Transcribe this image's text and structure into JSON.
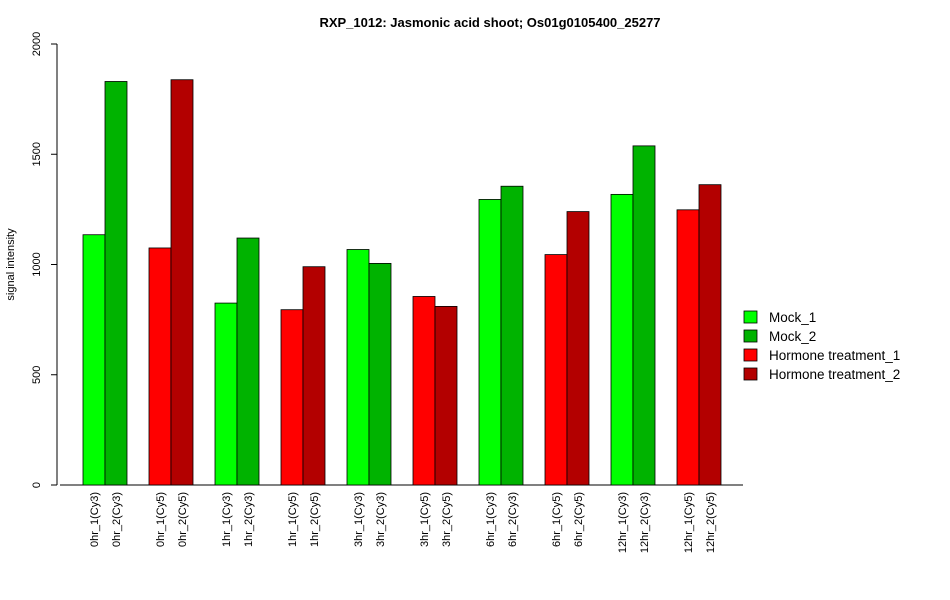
{
  "chart_data": {
    "type": "bar",
    "title": "RXP_1012: Jasmonic acid shoot; Os01g0105400_25277",
    "xlabel": "",
    "ylabel": "signal intensity",
    "ylim": [
      0,
      2000
    ],
    "yticks": [
      0,
      500,
      1000,
      1500,
      2000
    ],
    "grid": false,
    "legend_position": "right",
    "legend": [
      {
        "label": "Mock_1",
        "color": "#00ff00"
      },
      {
        "label": "Mock_2",
        "color": "#00b300"
      },
      {
        "label": "Hormone treatment_1",
        "color": "#ff0000"
      },
      {
        "label": "Hormone treatment_2",
        "color": "#b30000"
      }
    ],
    "groups": [
      {
        "bars": [
          {
            "label": "0hr_1(Cy3)",
            "value": 1135,
            "series": "Mock_1"
          },
          {
            "label": "0hr_2(Cy3)",
            "value": 1830,
            "series": "Mock_2"
          }
        ]
      },
      {
        "bars": [
          {
            "label": "0hr_1(Cy5)",
            "value": 1075,
            "series": "Hormone treatment_1"
          },
          {
            "label": "0hr_2(Cy5)",
            "value": 1838,
            "series": "Hormone treatment_2"
          }
        ]
      },
      {
        "bars": [
          {
            "label": "1hr_1(Cy3)",
            "value": 825,
            "series": "Mock_1"
          },
          {
            "label": "1hr_2(Cy3)",
            "value": 1120,
            "series": "Mock_2"
          }
        ]
      },
      {
        "bars": [
          {
            "label": "1hr_1(Cy5)",
            "value": 795,
            "series": "Hormone treatment_1"
          },
          {
            "label": "1hr_2(Cy5)",
            "value": 990,
            "series": "Hormone treatment_2"
          }
        ]
      },
      {
        "bars": [
          {
            "label": "3hr_1(Cy3)",
            "value": 1068,
            "series": "Mock_1"
          },
          {
            "label": "3hr_2(Cy3)",
            "value": 1005,
            "series": "Mock_2"
          }
        ]
      },
      {
        "bars": [
          {
            "label": "3hr_1(Cy5)",
            "value": 855,
            "series": "Hormone treatment_1"
          },
          {
            "label": "3hr_2(Cy5)",
            "value": 810,
            "series": "Hormone treatment_2"
          }
        ]
      },
      {
        "bars": [
          {
            "label": "6hr_1(Cy3)",
            "value": 1295,
            "series": "Mock_1"
          },
          {
            "label": "6hr_2(Cy3)",
            "value": 1355,
            "series": "Mock_2"
          }
        ]
      },
      {
        "bars": [
          {
            "label": "6hr_1(Cy5)",
            "value": 1045,
            "series": "Hormone treatment_1"
          },
          {
            "label": "6hr_2(Cy5)",
            "value": 1240,
            "series": "Hormone treatment_2"
          }
        ]
      },
      {
        "bars": [
          {
            "label": "12hr_1(Cy3)",
            "value": 1318,
            "series": "Mock_1"
          },
          {
            "label": "12hr_2(Cy3)",
            "value": 1538,
            "series": "Mock_2"
          }
        ]
      },
      {
        "bars": [
          {
            "label": "12hr_1(Cy5)",
            "value": 1248,
            "series": "Hormone treatment_1"
          },
          {
            "label": "12hr_2(Cy5)",
            "value": 1362,
            "series": "Hormone treatment_2"
          }
        ]
      }
    ]
  }
}
